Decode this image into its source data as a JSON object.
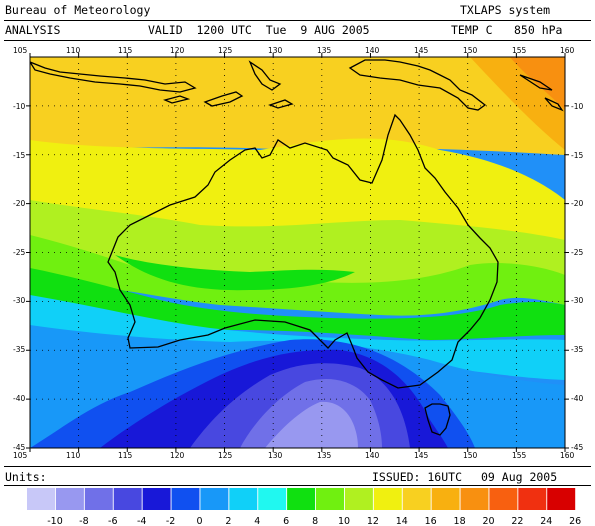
{
  "header": {
    "agency": "Bureau of Meteorology",
    "system": "TXLAPS system",
    "analysis": "ANALYSIS",
    "valid": "VALID  1200 UTC  Tue  9 AUG 2005",
    "field": "TEMP C",
    "level": "850 hPa"
  },
  "map": {
    "lon_ticks": [
      "105",
      "110",
      "115",
      "120",
      "125",
      "130",
      "135",
      "140",
      "145",
      "150",
      "155",
      "160"
    ],
    "lat_ticks": [
      "-10",
      "-15",
      "-20",
      "-25",
      "-30",
      "-35",
      "-40",
      "-45"
    ],
    "lon_range": [
      105,
      160
    ],
    "lat_range": [
      -5,
      -45
    ]
  },
  "footer": {
    "units_label": "Units:",
    "issued": "ISSUED: 16UTC",
    "date": "09 Aug 2005"
  },
  "legend": {
    "labels": [
      "-10",
      "-8",
      "-6",
      "-4",
      "-2",
      "0",
      "2",
      "4",
      "6",
      "8",
      "10",
      "12",
      "14",
      "16",
      "18",
      "20",
      "22",
      "24",
      "26"
    ],
    "colors": [
      "#c8c8f8",
      "#9898f0",
      "#7070e8",
      "#4848e0",
      "#1818d8",
      "#1050f0",
      "#1898f8",
      "#10d0f8",
      "#20f8f0",
      "#10e010",
      "#70f010",
      "#b0f020",
      "#f0f010",
      "#f8d020",
      "#f8b010",
      "#f89010",
      "#f86010",
      "#f03010",
      "#d80000"
    ]
  }
}
